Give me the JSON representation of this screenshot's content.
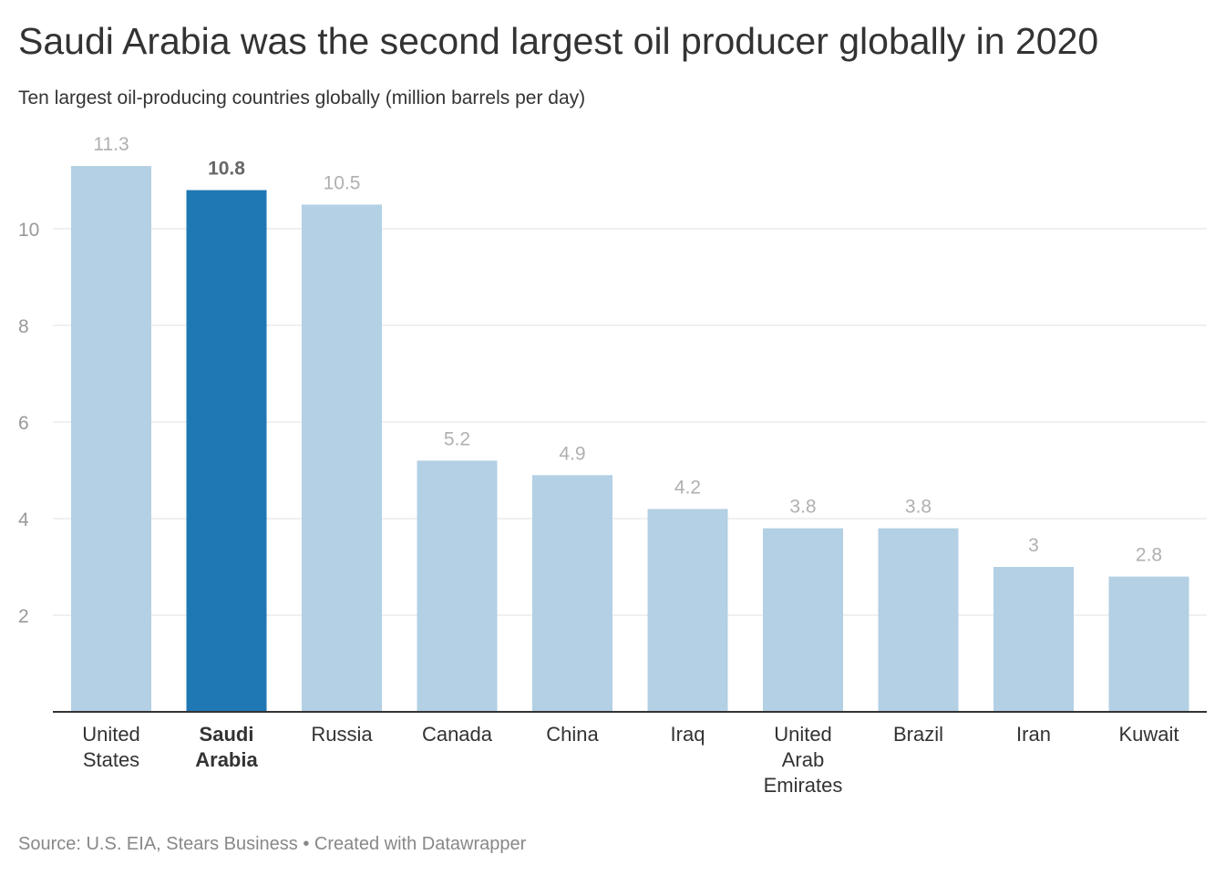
{
  "title": "Saudi Arabia was the second largest oil producer globally in 2020",
  "subtitle": "Ten largest oil-producing countries globally (million barrels per day)",
  "footer": {
    "source": "Source: U.S. EIA, Stears Business",
    "separator": " • ",
    "credit": "Created with Datawrapper"
  },
  "colors": {
    "bar": "#b3d0e4",
    "bar_highlight": "#1f77b4",
    "value_label": "#b0b0b0",
    "value_label_highlight": "#666666",
    "grid": "#e0e0e0",
    "axis": "#333333",
    "tick_label": "#999999"
  },
  "chart_data": {
    "type": "bar",
    "categories": [
      "United States",
      "Saudi Arabia",
      "Russia",
      "Canada",
      "China",
      "Iraq",
      "United Arab Emirates",
      "Brazil",
      "Iran",
      "Kuwait"
    ],
    "category_lines": [
      [
        "United",
        "States"
      ],
      [
        "Saudi",
        "Arabia"
      ],
      [
        "Russia"
      ],
      [
        "Canada"
      ],
      [
        "China"
      ],
      [
        "Iraq"
      ],
      [
        "United",
        "Arab",
        "Emirates"
      ],
      [
        "Brazil"
      ],
      [
        "Iran"
      ],
      [
        "Kuwait"
      ]
    ],
    "values": [
      11.3,
      10.8,
      10.5,
      5.2,
      4.9,
      4.2,
      3.8,
      3.8,
      3,
      2.8
    ],
    "value_labels": [
      "11.3",
      "10.8",
      "10.5",
      "5.2",
      "4.9",
      "4.2",
      "3.8",
      "3.8",
      "3",
      "2.8"
    ],
    "highlight_index": 1,
    "yticks": [
      2,
      4,
      6,
      8,
      10
    ],
    "ylim": [
      0,
      11.3
    ],
    "grid": true,
    "legend": "none"
  }
}
